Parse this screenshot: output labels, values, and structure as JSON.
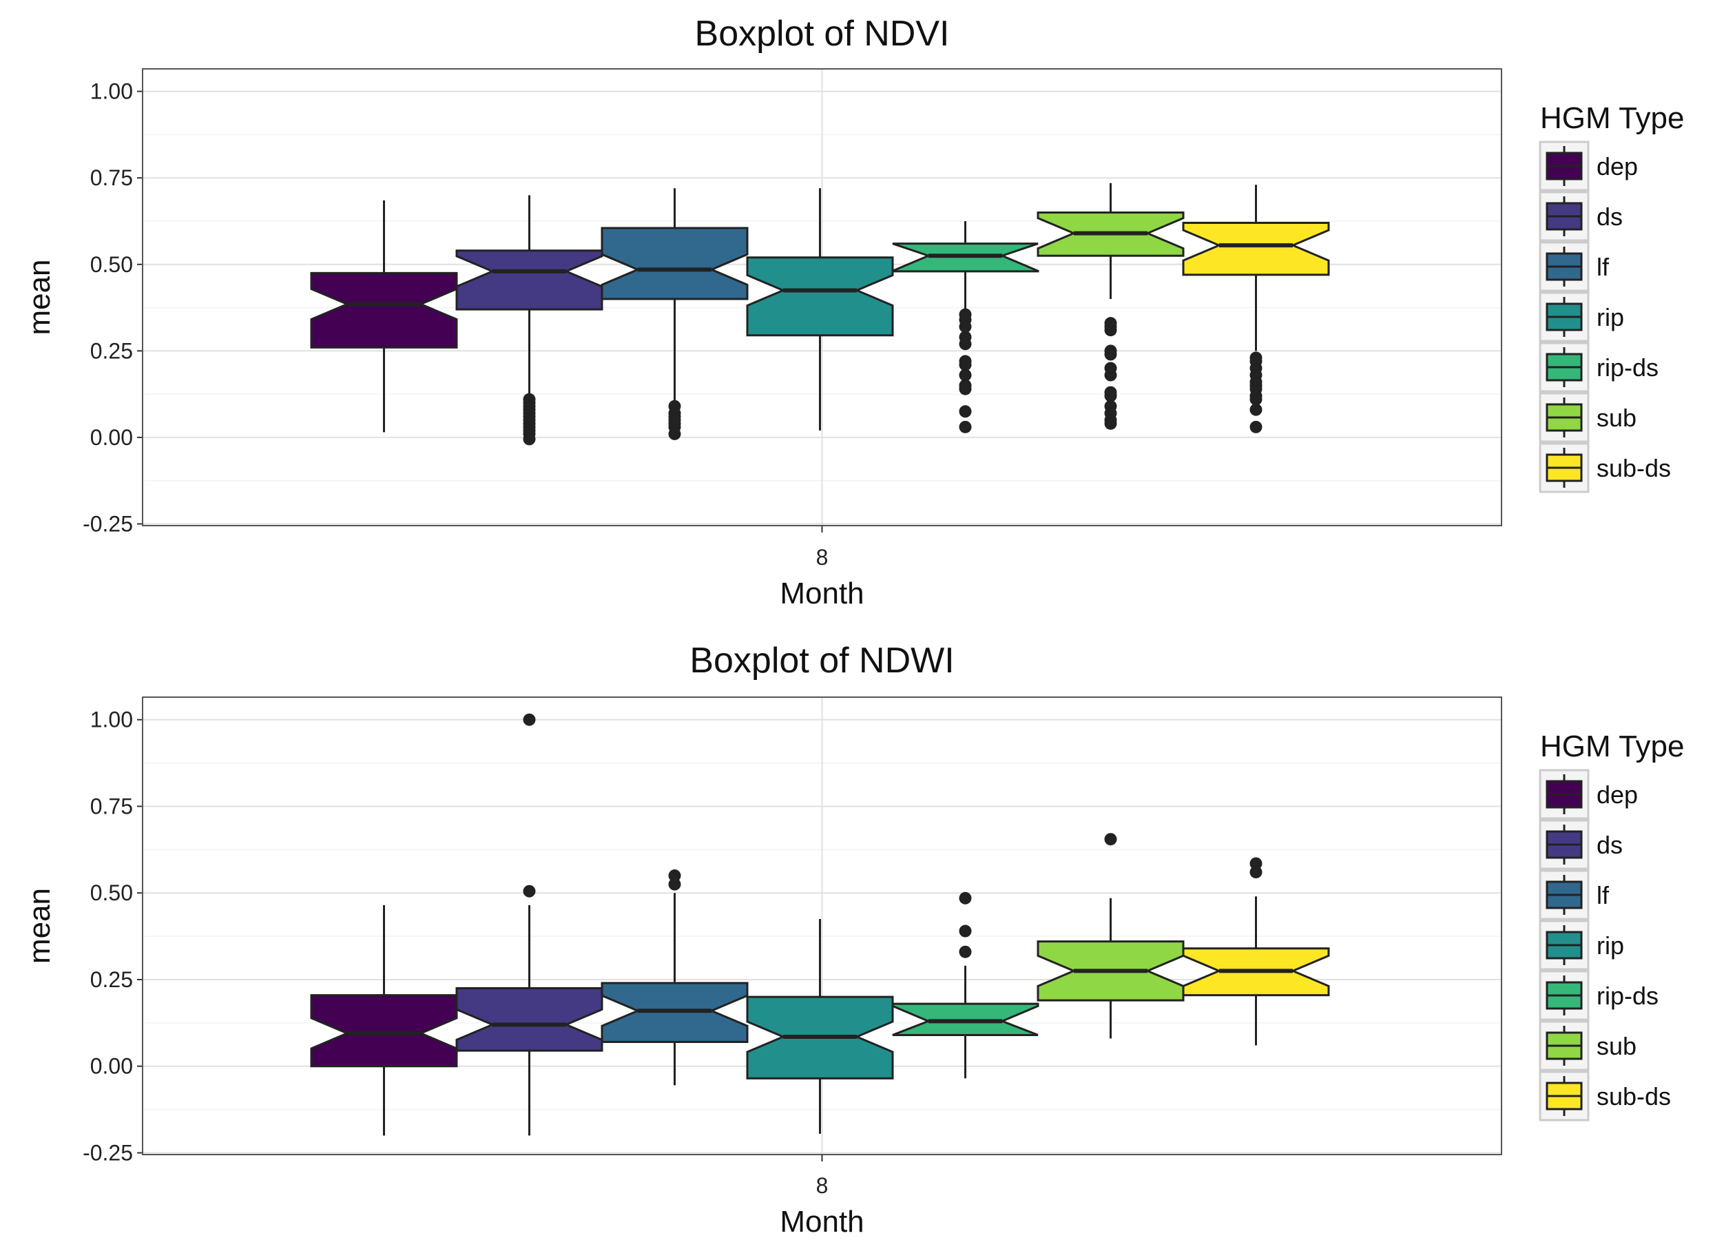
{
  "chart_data": [
    {
      "type": "boxplot",
      "title": "Boxplot of NDVI",
      "xlabel": "Month",
      "ylabel": "mean",
      "x_categories": [
        "8"
      ],
      "ylim": [
        -0.25,
        1.0
      ],
      "yticks": [
        "-0.25",
        "0.00",
        "0.25",
        "0.50",
        "0.75",
        "1.00"
      ],
      "notched": true,
      "grid": true,
      "legend": {
        "title": "HGM Type",
        "position": "right"
      },
      "series": [
        {
          "name": "dep",
          "color": "#440154",
          "low": 0.015,
          "q1": 0.26,
          "median": 0.385,
          "q3": 0.475,
          "high": 0.685,
          "outliers": []
        },
        {
          "name": "ds",
          "color": "#443a83",
          "low": 0.1,
          "q1": 0.37,
          "median": 0.48,
          "q3": 0.54,
          "high": 0.7,
          "outliers": [
            0.11,
            0.1,
            0.09,
            0.08,
            0.07,
            0.06,
            0.05,
            0.04,
            0.03,
            0.02,
            0.01,
            -0.005
          ]
        },
        {
          "name": "lf",
          "color": "#31688e",
          "low": 0.1,
          "q1": 0.4,
          "median": 0.485,
          "q3": 0.605,
          "high": 0.72,
          "outliers": [
            0.09,
            0.07,
            0.06,
            0.05,
            0.04,
            0.03,
            0.01
          ]
        },
        {
          "name": "rip",
          "color": "#21908d",
          "low": 0.02,
          "q1": 0.295,
          "median": 0.425,
          "q3": 0.52,
          "high": 0.72,
          "outliers": []
        },
        {
          "name": "rip-ds",
          "color": "#35b779",
          "low": 0.36,
          "q1": 0.48,
          "median": 0.525,
          "q3": 0.56,
          "high": 0.625,
          "outliers": [
            0.355,
            0.34,
            0.32,
            0.29,
            0.27,
            0.22,
            0.21,
            0.18,
            0.15,
            0.14,
            0.075,
            0.03
          ]
        },
        {
          "name": "sub",
          "color": "#8fd744",
          "low": 0.4,
          "q1": 0.525,
          "median": 0.59,
          "q3": 0.65,
          "high": 0.735,
          "outliers": [
            0.33,
            0.32,
            0.31,
            0.25,
            0.24,
            0.2,
            0.18,
            0.13,
            0.12,
            0.09,
            0.07,
            0.05,
            0.04
          ]
        },
        {
          "name": "sub-ds",
          "color": "#fde725",
          "low": 0.25,
          "q1": 0.47,
          "median": 0.555,
          "q3": 0.62,
          "high": 0.73,
          "outliers": [
            0.23,
            0.22,
            0.2,
            0.18,
            0.16,
            0.15,
            0.14,
            0.12,
            0.11,
            0.08,
            0.03
          ]
        }
      ]
    },
    {
      "type": "boxplot",
      "title": "Boxplot of NDWI",
      "xlabel": "Month",
      "ylabel": "mean",
      "x_categories": [
        "8"
      ],
      "ylim": [
        -0.25,
        1.0
      ],
      "yticks": [
        "-0.25",
        "0.00",
        "0.25",
        "0.50",
        "0.75",
        "1.00"
      ],
      "notched": true,
      "grid": true,
      "legend": {
        "title": "HGM Type",
        "position": "right"
      },
      "series": [
        {
          "name": "dep",
          "color": "#440154",
          "low": -0.2,
          "q1": 0.0,
          "median": 0.095,
          "q3": 0.205,
          "high": 0.465,
          "outliers": []
        },
        {
          "name": "ds",
          "color": "#443a83",
          "low": -0.2,
          "q1": 0.045,
          "median": 0.12,
          "q3": 0.225,
          "high": 0.465,
          "outliers": [
            1.0,
            0.505
          ]
        },
        {
          "name": "lf",
          "color": "#31688e",
          "low": -0.055,
          "q1": 0.07,
          "median": 0.16,
          "q3": 0.24,
          "high": 0.5,
          "outliers": [
            0.55,
            0.525
          ]
        },
        {
          "name": "rip",
          "color": "#21908d",
          "low": -0.195,
          "q1": -0.035,
          "median": 0.085,
          "q3": 0.2,
          "high": 0.425,
          "outliers": []
        },
        {
          "name": "rip-ds",
          "color": "#35b779",
          "low": -0.035,
          "q1": 0.09,
          "median": 0.13,
          "q3": 0.18,
          "high": 0.29,
          "outliers": [
            0.485,
            0.39,
            0.33
          ]
        },
        {
          "name": "sub",
          "color": "#8fd744",
          "low": 0.08,
          "q1": 0.19,
          "median": 0.275,
          "q3": 0.36,
          "high": 0.485,
          "outliers": [
            0.655
          ]
        },
        {
          "name": "sub-ds",
          "color": "#fde725",
          "low": 0.06,
          "q1": 0.205,
          "median": 0.275,
          "q3": 0.34,
          "high": 0.49,
          "outliers": [
            0.585,
            0.56
          ]
        }
      ]
    }
  ]
}
